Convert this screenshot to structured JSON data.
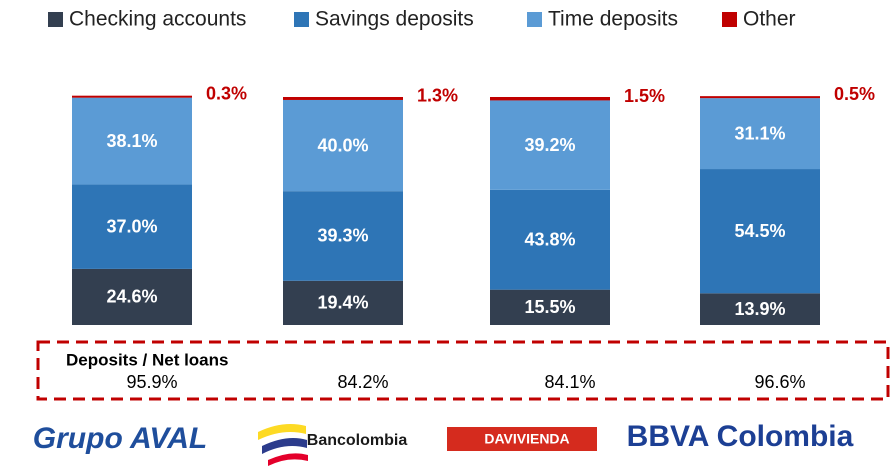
{
  "chart_data": {
    "type": "stacked_bar",
    "categories": [
      "Grupo AVAL",
      "Bancolombia",
      "DAVIVIENDA",
      "BBVA Colombia"
    ],
    "ylim": [
      0,
      100
    ],
    "series": [
      {
        "name": "Checking accounts",
        "color": "#333f50",
        "values": [
          24.6,
          19.4,
          15.5,
          13.9
        ],
        "value_labels": [
          "24.6%",
          "19.4%",
          "15.5%",
          "13.9%"
        ]
      },
      {
        "name": "Savings deposits",
        "color": "#2e75b6",
        "values": [
          37.0,
          39.3,
          43.8,
          54.5
        ],
        "value_labels": [
          "37.0%",
          "39.3%",
          "43.8%",
          "54.5%"
        ]
      },
      {
        "name": "Time deposits",
        "color": "#5b9bd5",
        "values": [
          38.1,
          40.0,
          39.2,
          31.1
        ],
        "value_labels": [
          "38.1%",
          "40.0%",
          "39.2%",
          "31.1%"
        ]
      },
      {
        "name": "Other",
        "color": "#c00000",
        "values": [
          0.3,
          1.3,
          1.5,
          0.5
        ],
        "value_labels": [
          "0.3%",
          "1.3%",
          "1.5%",
          "0.5%"
        ]
      }
    ],
    "legend": "top",
    "ratio": {
      "label": "Deposits / Net loans",
      "values": [
        95.9,
        84.2,
        84.1,
        96.6
      ],
      "value_labels": [
        "95.9%",
        "84.2%",
        "84.1%",
        "96.6%"
      ]
    }
  }
}
